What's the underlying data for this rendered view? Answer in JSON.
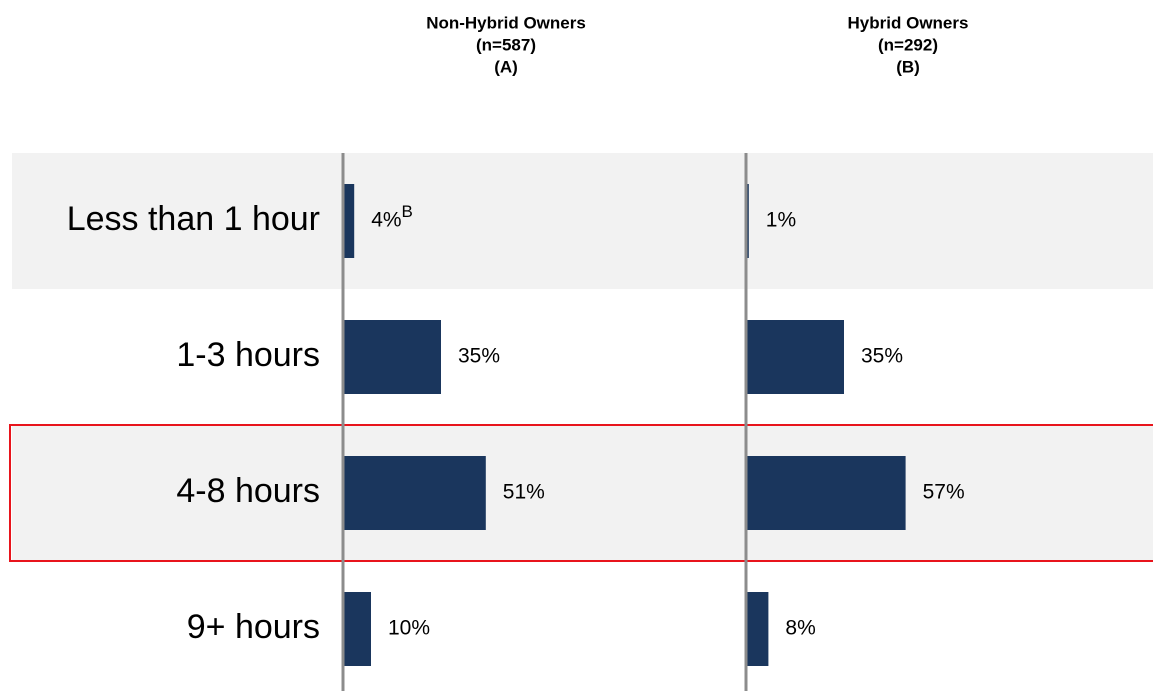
{
  "chart_data": {
    "type": "bar",
    "orientation": "horizontal",
    "categories": [
      "Less than 1 hour",
      "1-3 hours",
      "4-8 hours",
      "9+ hours"
    ],
    "series": [
      {
        "name": "Non-Hybrid Owners",
        "sample": "(n=587)",
        "letter": "(A)",
        "color": "#1a365d",
        "values": [
          4,
          35,
          51,
          10
        ],
        "value_labels": [
          "4%",
          "35%",
          "51%",
          "10%"
        ],
        "value_notes": [
          "B",
          null,
          null,
          null
        ]
      },
      {
        "name": "Hybrid Owners",
        "sample": "(n=292)",
        "letter": "(B)",
        "color": "#1a365d",
        "values": [
          1,
          35,
          57,
          8
        ],
        "value_labels": [
          "1%",
          "35%",
          "57%",
          "8%"
        ]
      }
    ],
    "band_color": "#f2f2f2",
    "highlight": "4-8 hours",
    "highlight_color": "#e8141c"
  }
}
